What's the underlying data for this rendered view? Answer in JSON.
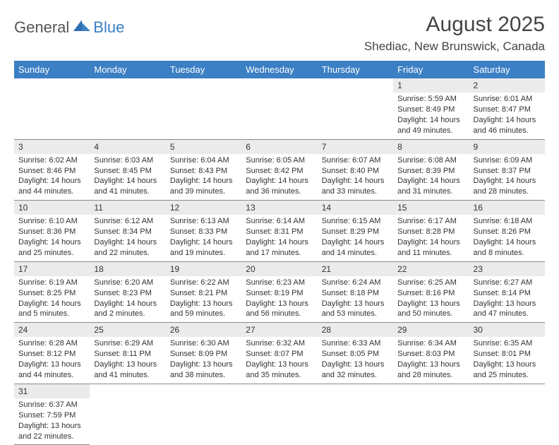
{
  "brand": {
    "name1": "General",
    "name2": "Blue"
  },
  "title": "August 2025",
  "location": "Shediac, New Brunswick, Canada",
  "colors": {
    "header_bg": "#3b7fc4",
    "header_text": "#ffffff",
    "daynum_bg": "#ebebeb",
    "cell_border": "#8a8a8a",
    "body_text": "#333333",
    "title_text": "#444444"
  },
  "typography": {
    "title_fontsize": 30,
    "location_fontsize": 17,
    "dayhead_fontsize": 13,
    "cell_fontsize": 11,
    "logo_fontsize": 22
  },
  "day_headers": [
    "Sunday",
    "Monday",
    "Tuesday",
    "Wednesday",
    "Thursday",
    "Friday",
    "Saturday"
  ],
  "weeks": [
    [
      null,
      null,
      null,
      null,
      null,
      {
        "n": "1",
        "sunrise": "Sunrise: 5:59 AM",
        "sunset": "Sunset: 8:49 PM",
        "daylight": "Daylight: 14 hours and 49 minutes."
      },
      {
        "n": "2",
        "sunrise": "Sunrise: 6:01 AM",
        "sunset": "Sunset: 8:47 PM",
        "daylight": "Daylight: 14 hours and 46 minutes."
      }
    ],
    [
      {
        "n": "3",
        "sunrise": "Sunrise: 6:02 AM",
        "sunset": "Sunset: 8:46 PM",
        "daylight": "Daylight: 14 hours and 44 minutes."
      },
      {
        "n": "4",
        "sunrise": "Sunrise: 6:03 AM",
        "sunset": "Sunset: 8:45 PM",
        "daylight": "Daylight: 14 hours and 41 minutes."
      },
      {
        "n": "5",
        "sunrise": "Sunrise: 6:04 AM",
        "sunset": "Sunset: 8:43 PM",
        "daylight": "Daylight: 14 hours and 39 minutes."
      },
      {
        "n": "6",
        "sunrise": "Sunrise: 6:05 AM",
        "sunset": "Sunset: 8:42 PM",
        "daylight": "Daylight: 14 hours and 36 minutes."
      },
      {
        "n": "7",
        "sunrise": "Sunrise: 6:07 AM",
        "sunset": "Sunset: 8:40 PM",
        "daylight": "Daylight: 14 hours and 33 minutes."
      },
      {
        "n": "8",
        "sunrise": "Sunrise: 6:08 AM",
        "sunset": "Sunset: 8:39 PM",
        "daylight": "Daylight: 14 hours and 31 minutes."
      },
      {
        "n": "9",
        "sunrise": "Sunrise: 6:09 AM",
        "sunset": "Sunset: 8:37 PM",
        "daylight": "Daylight: 14 hours and 28 minutes."
      }
    ],
    [
      {
        "n": "10",
        "sunrise": "Sunrise: 6:10 AM",
        "sunset": "Sunset: 8:36 PM",
        "daylight": "Daylight: 14 hours and 25 minutes."
      },
      {
        "n": "11",
        "sunrise": "Sunrise: 6:12 AM",
        "sunset": "Sunset: 8:34 PM",
        "daylight": "Daylight: 14 hours and 22 minutes."
      },
      {
        "n": "12",
        "sunrise": "Sunrise: 6:13 AM",
        "sunset": "Sunset: 8:33 PM",
        "daylight": "Daylight: 14 hours and 19 minutes."
      },
      {
        "n": "13",
        "sunrise": "Sunrise: 6:14 AM",
        "sunset": "Sunset: 8:31 PM",
        "daylight": "Daylight: 14 hours and 17 minutes."
      },
      {
        "n": "14",
        "sunrise": "Sunrise: 6:15 AM",
        "sunset": "Sunset: 8:29 PM",
        "daylight": "Daylight: 14 hours and 14 minutes."
      },
      {
        "n": "15",
        "sunrise": "Sunrise: 6:17 AM",
        "sunset": "Sunset: 8:28 PM",
        "daylight": "Daylight: 14 hours and 11 minutes."
      },
      {
        "n": "16",
        "sunrise": "Sunrise: 6:18 AM",
        "sunset": "Sunset: 8:26 PM",
        "daylight": "Daylight: 14 hours and 8 minutes."
      }
    ],
    [
      {
        "n": "17",
        "sunrise": "Sunrise: 6:19 AM",
        "sunset": "Sunset: 8:25 PM",
        "daylight": "Daylight: 14 hours and 5 minutes."
      },
      {
        "n": "18",
        "sunrise": "Sunrise: 6:20 AM",
        "sunset": "Sunset: 8:23 PM",
        "daylight": "Daylight: 14 hours and 2 minutes."
      },
      {
        "n": "19",
        "sunrise": "Sunrise: 6:22 AM",
        "sunset": "Sunset: 8:21 PM",
        "daylight": "Daylight: 13 hours and 59 minutes."
      },
      {
        "n": "20",
        "sunrise": "Sunrise: 6:23 AM",
        "sunset": "Sunset: 8:19 PM",
        "daylight": "Daylight: 13 hours and 56 minutes."
      },
      {
        "n": "21",
        "sunrise": "Sunrise: 6:24 AM",
        "sunset": "Sunset: 8:18 PM",
        "daylight": "Daylight: 13 hours and 53 minutes."
      },
      {
        "n": "22",
        "sunrise": "Sunrise: 6:25 AM",
        "sunset": "Sunset: 8:16 PM",
        "daylight": "Daylight: 13 hours and 50 minutes."
      },
      {
        "n": "23",
        "sunrise": "Sunrise: 6:27 AM",
        "sunset": "Sunset: 8:14 PM",
        "daylight": "Daylight: 13 hours and 47 minutes."
      }
    ],
    [
      {
        "n": "24",
        "sunrise": "Sunrise: 6:28 AM",
        "sunset": "Sunset: 8:12 PM",
        "daylight": "Daylight: 13 hours and 44 minutes."
      },
      {
        "n": "25",
        "sunrise": "Sunrise: 6:29 AM",
        "sunset": "Sunset: 8:11 PM",
        "daylight": "Daylight: 13 hours and 41 minutes."
      },
      {
        "n": "26",
        "sunrise": "Sunrise: 6:30 AM",
        "sunset": "Sunset: 8:09 PM",
        "daylight": "Daylight: 13 hours and 38 minutes."
      },
      {
        "n": "27",
        "sunrise": "Sunrise: 6:32 AM",
        "sunset": "Sunset: 8:07 PM",
        "daylight": "Daylight: 13 hours and 35 minutes."
      },
      {
        "n": "28",
        "sunrise": "Sunrise: 6:33 AM",
        "sunset": "Sunset: 8:05 PM",
        "daylight": "Daylight: 13 hours and 32 minutes."
      },
      {
        "n": "29",
        "sunrise": "Sunrise: 6:34 AM",
        "sunset": "Sunset: 8:03 PM",
        "daylight": "Daylight: 13 hours and 28 minutes."
      },
      {
        "n": "30",
        "sunrise": "Sunrise: 6:35 AM",
        "sunset": "Sunset: 8:01 PM",
        "daylight": "Daylight: 13 hours and 25 minutes."
      }
    ],
    [
      {
        "n": "31",
        "sunrise": "Sunrise: 6:37 AM",
        "sunset": "Sunset: 7:59 PM",
        "daylight": "Daylight: 13 hours and 22 minutes."
      },
      null,
      null,
      null,
      null,
      null,
      null
    ]
  ]
}
